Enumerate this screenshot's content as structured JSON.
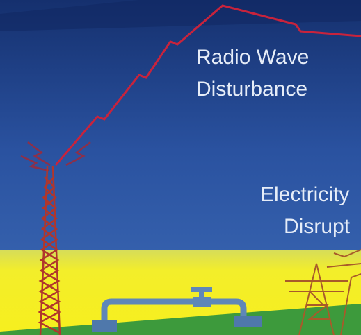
{
  "labels": {
    "radio_wave": [
      "Radio Wave",
      "Disturbance"
    ],
    "electricity": [
      "Electricity",
      "Disrupt"
    ]
  }
}
